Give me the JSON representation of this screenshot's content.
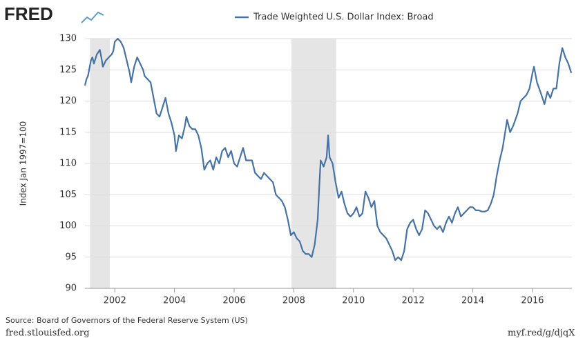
{
  "logo": "FRED",
  "source": "Source: Board of Governors of the Federal Reserve System (US)",
  "site": "fred.stlouisfed.org",
  "short_url": "myf.red/g/djqX",
  "chart_data": {
    "type": "line",
    "ylabel": "Index Jan 1997=100",
    "xlim": [
      2001.0,
      2017.32
    ],
    "xticks": [
      2002,
      2004,
      2006,
      2008,
      2010,
      2012,
      2014,
      2016
    ],
    "ylim": [
      90,
      130
    ],
    "yticks": [
      90,
      95,
      100,
      105,
      110,
      115,
      120,
      125,
      130
    ],
    "grid": true,
    "recessions": [
      [
        2001.17,
        2001.83
      ],
      [
        2007.92,
        2009.42
      ]
    ],
    "x": [
      2001.0,
      2001.05,
      2001.1,
      2001.2,
      2001.25,
      2001.3,
      2001.4,
      2001.5,
      2001.55,
      2001.6,
      2001.7,
      2001.8,
      2001.9,
      2001.95,
      2002.0,
      2002.1,
      2002.2,
      2002.3,
      2002.4,
      2002.5,
      2002.55,
      2002.65,
      2002.75,
      2002.85,
      2002.95,
      2003.0,
      2003.1,
      2003.2,
      2003.3,
      2003.4,
      2003.5,
      2003.6,
      2003.7,
      2003.8,
      2003.9,
      2004.0,
      2004.05,
      2004.15,
      2004.25,
      2004.35,
      2004.4,
      2004.5,
      2004.6,
      2004.7,
      2004.8,
      2004.9,
      2005.0,
      2005.1,
      2005.2,
      2005.3,
      2005.4,
      2005.5,
      2005.6,
      2005.7,
      2005.8,
      2005.9,
      2006.0,
      2006.1,
      2006.2,
      2006.3,
      2006.4,
      2006.5,
      2006.6,
      2006.7,
      2006.8,
      2006.9,
      2007.0,
      2007.1,
      2007.2,
      2007.3,
      2007.4,
      2007.5,
      2007.6,
      2007.7,
      2007.8,
      2007.9,
      2008.0,
      2008.1,
      2008.2,
      2008.3,
      2008.4,
      2008.5,
      2008.6,
      2008.7,
      2008.8,
      2008.85,
      2008.9,
      2009.0,
      2009.1,
      2009.15,
      2009.2,
      2009.3,
      2009.4,
      2009.5,
      2009.6,
      2009.7,
      2009.8,
      2009.9,
      2010.0,
      2010.1,
      2010.2,
      2010.3,
      2010.4,
      2010.5,
      2010.6,
      2010.7,
      2010.8,
      2010.9,
      2011.0,
      2011.1,
      2011.2,
      2011.3,
      2011.4,
      2011.5,
      2011.6,
      2011.7,
      2011.8,
      2011.9,
      2012.0,
      2012.1,
      2012.2,
      2012.3,
      2012.4,
      2012.5,
      2012.6,
      2012.7,
      2012.8,
      2012.9,
      2013.0,
      2013.1,
      2013.2,
      2013.3,
      2013.4,
      2013.5,
      2013.6,
      2013.7,
      2013.8,
      2013.9,
      2014.0,
      2014.1,
      2014.2,
      2014.3,
      2014.4,
      2014.5,
      2014.6,
      2014.7,
      2014.8,
      2014.9,
      2015.0,
      2015.1,
      2015.15,
      2015.25,
      2015.35,
      2015.5,
      2015.6,
      2015.7,
      2015.8,
      2015.9,
      2016.0,
      2016.05,
      2016.15,
      2016.3,
      2016.4,
      2016.5,
      2016.6,
      2016.7,
      2016.8,
      2016.9,
      2017.0,
      2017.1,
      2017.2,
      2017.3
    ],
    "series": [
      {
        "name": "Trade Weighted U.S. Dollar Index: Broad",
        "color": "#4572a7",
        "values": [
          122.5,
          123.5,
          124,
          126.5,
          127,
          126,
          127.5,
          128.2,
          127,
          125.5,
          126.5,
          127,
          127.5,
          128,
          129.5,
          130,
          129.5,
          128.5,
          126.5,
          124.5,
          123,
          125.5,
          127,
          126,
          125,
          124,
          123.5,
          123,
          120.5,
          118,
          117.5,
          119,
          120.5,
          118,
          116.5,
          114.5,
          112,
          114.5,
          114,
          116,
          117.5,
          116,
          115.5,
          115.5,
          114.5,
          112.5,
          109,
          110,
          110.5,
          109,
          111,
          110,
          112,
          112.5,
          111,
          112,
          110,
          109.5,
          111,
          112.5,
          110.5,
          110.5,
          110.5,
          108.5,
          108,
          107.5,
          108.5,
          108,
          107.5,
          107,
          105,
          104.5,
          104,
          103,
          101,
          98.5,
          99,
          98,
          97.5,
          96,
          95.5,
          95.5,
          95,
          97,
          101,
          106,
          110.5,
          109.5,
          111,
          114.5,
          111,
          110,
          107,
          104.5,
          105.5,
          103.5,
          102,
          101.5,
          102,
          103,
          101.5,
          102,
          105.5,
          104.5,
          103,
          104,
          100,
          99,
          98.5,
          98,
          97,
          96,
          94.5,
          95,
          94.5,
          96,
          99.5,
          100.5,
          101,
          99.5,
          98.5,
          99.5,
          102.5,
          102,
          101,
          100,
          99.5,
          100,
          99,
          100.5,
          101.5,
          100.5,
          102,
          103,
          101.5,
          102,
          102.5,
          103,
          103,
          102.5,
          102.5,
          102.3,
          102.3,
          102.5,
          103.5,
          105,
          108,
          110.5,
          112.5,
          115.5,
          117,
          115,
          116,
          118,
          120,
          120.5,
          121,
          122,
          124.5,
          125.5,
          123,
          121,
          119.5,
          121.5,
          120.5,
          122,
          122,
          126,
          128.5,
          127,
          126,
          124.5
        ]
      }
    ]
  }
}
